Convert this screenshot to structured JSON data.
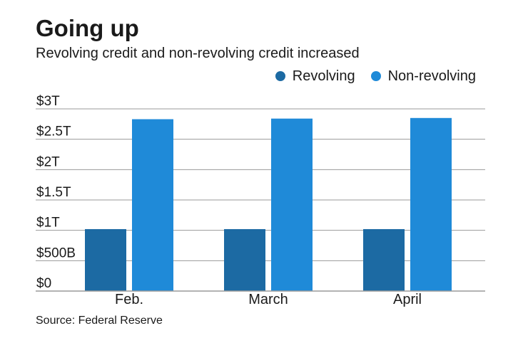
{
  "title": "Going up",
  "subtitle": "Revolving credit and non-revolving credit increased",
  "source": "Source: Federal Reserve",
  "colors": {
    "revolving": "#1c6aa3",
    "non_revolving": "#1f8ad8",
    "grid": "#9a9a9a",
    "text": "#1a1a1a"
  },
  "chart_data": {
    "type": "bar",
    "categories": [
      "Feb.",
      "March",
      "April"
    ],
    "series": [
      {
        "name": "Revolving",
        "values": [
          1.02,
          1.02,
          1.02
        ]
      },
      {
        "name": "Non-revolving",
        "values": [
          2.83,
          2.84,
          2.85
        ]
      }
    ],
    "y_ticks": [
      0,
      0.5,
      1,
      1.5,
      2,
      2.5,
      3
    ],
    "y_tick_labels": [
      "$0",
      "$500B",
      "$1T",
      "$1.5T",
      "$2T",
      "$2.5T",
      "$3T"
    ],
    "ylim": [
      0,
      3
    ],
    "y_unit": "trillions of dollars",
    "grid": true,
    "legend_position": "top-right"
  }
}
